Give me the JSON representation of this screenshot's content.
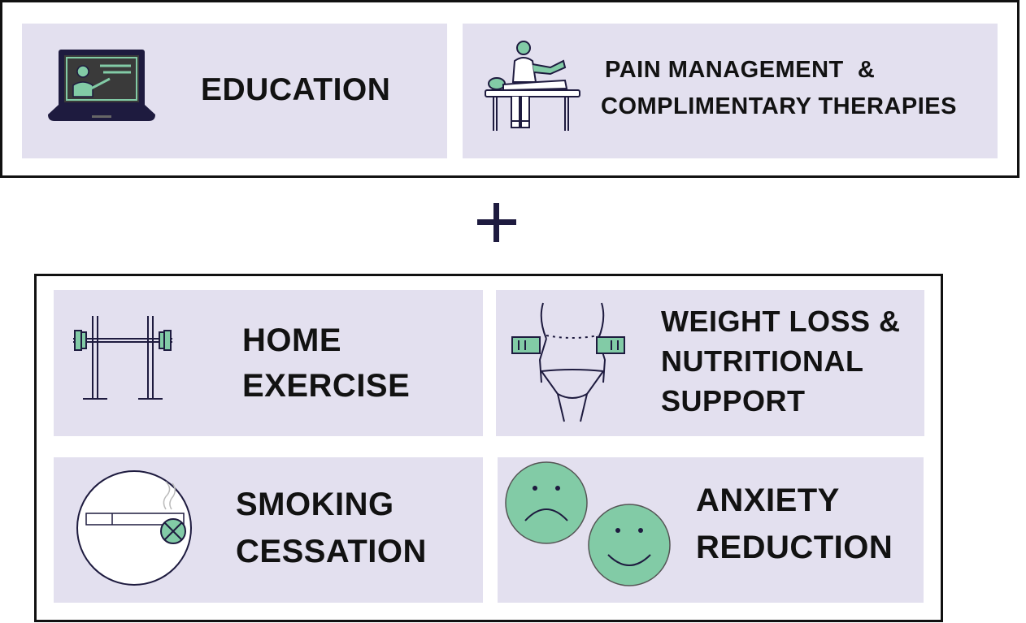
{
  "colors": {
    "card_bg": "#e3e0ef",
    "accent_green": "#82cba6",
    "ink": "#1e1b3f",
    "frame": "#111111"
  },
  "top_group": {
    "education": {
      "label": "EDUCATION",
      "icon": "laptop-presentation-icon"
    },
    "pain": {
      "line1": "PAIN MANAGEMENT  &",
      "line2": "COMPLIMENTARY THERAPIES",
      "icon": "physiotherapy-massage-icon"
    }
  },
  "connector": {
    "symbol": "+"
  },
  "bottom_group": {
    "home_exercise": {
      "line1": "HOME",
      "line2": "EXERCISE",
      "icon": "barbell-rack-icon"
    },
    "weight_loss": {
      "line1": "WEIGHT LOSS &",
      "line2": "NUTRITIONAL",
      "line3": "SUPPORT",
      "icon": "waist-measuring-tape-icon"
    },
    "smoking": {
      "line1": "SMOKING",
      "line2": "CESSATION",
      "icon": "no-smoking-cigarette-icon"
    },
    "anxiety": {
      "line1": "ANXIETY",
      "line2": "REDUCTION",
      "icon": "sad-to-happy-faces-icon"
    }
  }
}
